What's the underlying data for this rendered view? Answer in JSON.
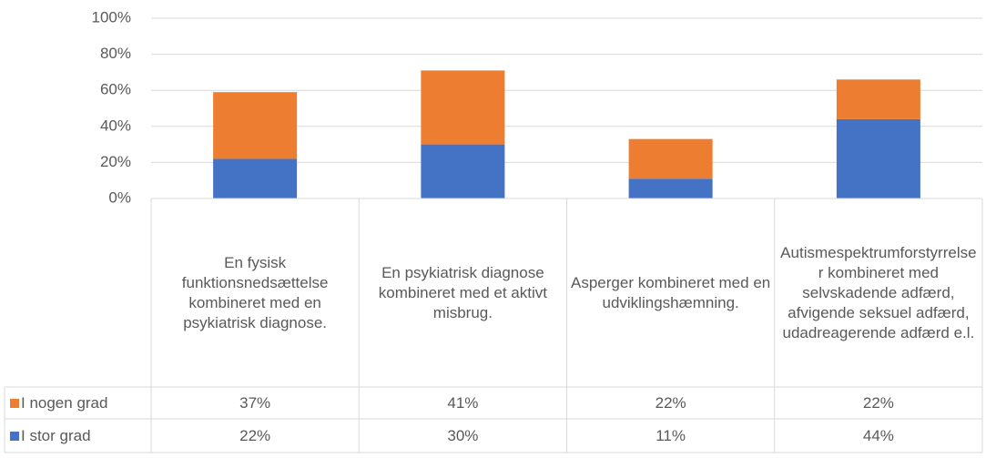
{
  "chart_data": {
    "type": "stacked_bar",
    "categories": [
      "En fysisk funktionsnedsættelse kombineret med en psykiatrisk diagnose.",
      "En psykiatrisk diagnose kombineret med et aktivt misbrug.",
      "Asperger kombineret med en udviklingshæmning.",
      "Autismespektrumforstyrrelser kombineret med selvskadende adfærd, afvigende seksuel adfærd, udadreagerende adfærd e.l."
    ],
    "series": [
      {
        "name": "I nogen grad",
        "color": "#ed7d31",
        "values": [
          37,
          41,
          22,
          22
        ],
        "value_labels": [
          "37%",
          "41%",
          "22%",
          "22%"
        ]
      },
      {
        "name": "I stor grad",
        "color": "#4472c4",
        "values": [
          22,
          30,
          11,
          44
        ],
        "value_labels": [
          "22%",
          "30%",
          "11%",
          "44%"
        ]
      }
    ],
    "ylim": [
      0,
      100
    ],
    "yticks": [
      {
        "value": 0,
        "label": "0%"
      },
      {
        "value": 20,
        "label": "20%"
      },
      {
        "value": 40,
        "label": "40%"
      },
      {
        "value": 60,
        "label": "60%"
      },
      {
        "value": 80,
        "label": "80%"
      },
      {
        "value": 100,
        "label": "100%"
      }
    ],
    "grid": true
  }
}
